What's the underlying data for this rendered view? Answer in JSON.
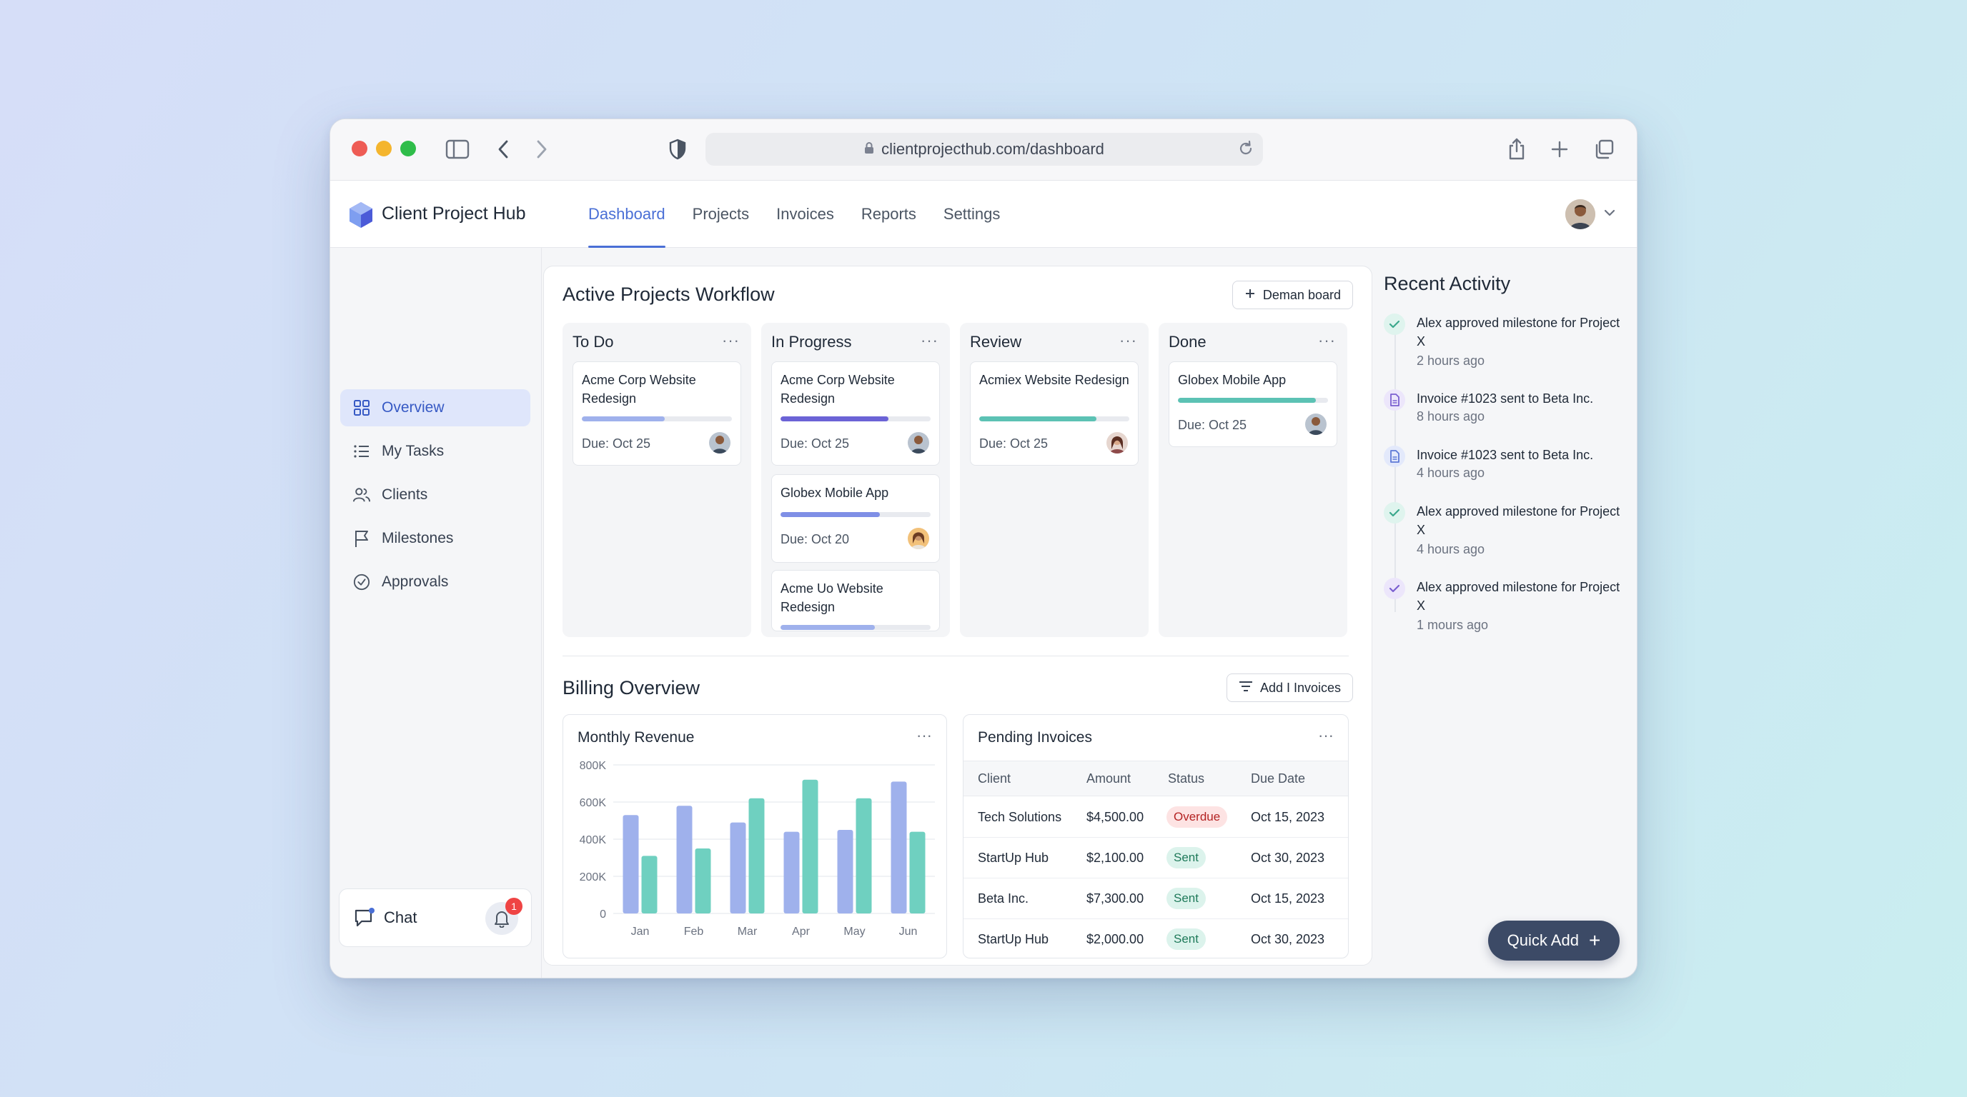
{
  "browser": {
    "url": "clientprojecthub.com/dashboard"
  },
  "app": {
    "brand": "Client Project Hub",
    "nav": [
      {
        "label": "Dashboard",
        "active": true
      },
      {
        "label": "Projects"
      },
      {
        "label": "Invoices"
      },
      {
        "label": "Reports"
      },
      {
        "label": "Settings"
      }
    ]
  },
  "sidebar": {
    "items": [
      {
        "label": "Overview",
        "icon": "grid-icon",
        "active": true
      },
      {
        "label": "My Tasks",
        "icon": "list-icon"
      },
      {
        "label": "Clients",
        "icon": "users-icon"
      },
      {
        "label": "Milestones",
        "icon": "flag-icon"
      },
      {
        "label": "Approvals",
        "icon": "check-circle-icon"
      }
    ],
    "chat_label": "Chat",
    "notification_count": "1"
  },
  "workflow": {
    "title": "Active Projects Workflow",
    "board_button": "Deman board",
    "columns": [
      {
        "title": "To Do",
        "more": "···",
        "cards": [
          {
            "title": "Acme Corp Website Redesign",
            "progress": 0.55,
            "color": "#9fb1ec",
            "due": "Due: Oct 25"
          }
        ]
      },
      {
        "title": "In Progress",
        "more": "···",
        "cards": [
          {
            "title": "Acme Corp Website Redesign",
            "progress": 0.72,
            "color": "#6b63d6",
            "due": "Due: Oct 25"
          },
          {
            "title": "Globex Mobile App",
            "progress": 0.66,
            "color": "#7f8fe6",
            "due": "Due: Oct 20"
          },
          {
            "title": "Acme Uo Website Redesign",
            "progress": 0.63,
            "color": "#9fb1ec",
            "due": ""
          }
        ]
      },
      {
        "title": "Review",
        "more": "···",
        "cards": [
          {
            "title": "Acmiex Website Redesign",
            "progress": 0.78,
            "color": "#5cc2b4",
            "due": "Due: Oct 25"
          }
        ]
      },
      {
        "title": "Done",
        "more": "···",
        "cards": [
          {
            "title": "Globex Mobile App",
            "progress": 0.92,
            "color": "#5cc2b4",
            "due": "Due: Oct 25"
          }
        ]
      }
    ]
  },
  "billing": {
    "title": "Billing Overview",
    "add_button": "Add I Invoices",
    "revenue_title": "Monthly Revenue",
    "invoices_title": "Pending Invoices",
    "more": "···",
    "invoice_headers": [
      "Client",
      "Amount",
      "Status",
      "Due Date"
    ],
    "invoices": [
      {
        "client": "Tech Solutions",
        "amount": "$4,500.00",
        "status": "Overdue",
        "due": "Oct 15, 2023"
      },
      {
        "client": "StartUp Hub",
        "amount": "$2,100.00",
        "status": "Sent",
        "due": "Oct 30, 2023"
      },
      {
        "client": "Beta Inc.",
        "amount": "$7,300.00",
        "status": "Sent",
        "due": "Oct 15, 2023"
      },
      {
        "client": "StartUp Hub",
        "amount": "$2,000.00",
        "status": "Sent",
        "due": "Oct 30, 2023"
      }
    ]
  },
  "chart_data": {
    "type": "bar",
    "title": "Monthly Revenue",
    "categories": [
      "Jan",
      "Feb",
      "Mar",
      "Apr",
      "May",
      "Jun"
    ],
    "y_tick_labels": [
      "0",
      "200K",
      "400K",
      "600K",
      "800K"
    ],
    "y_ticks": [
      0,
      200,
      400,
      600,
      800
    ],
    "ylim": [
      0,
      800
    ],
    "grid": true,
    "series": [
      {
        "values": [
          530,
          580,
          490,
          440,
          450,
          710
        ],
        "color": "#9fb1ec"
      },
      {
        "values": [
          310,
          350,
          620,
          720,
          620,
          440
        ],
        "color": "#6fd0c0"
      }
    ]
  },
  "activity": {
    "title": "Recent Activity",
    "items": [
      {
        "text": "Alex approved milestone for Project X",
        "time": "2 hours ago",
        "icon": "check-icon",
        "tint": "#dff4ee",
        "color": "#3aa88c"
      },
      {
        "text": "Invoice #1023 sent to Beta Inc.",
        "time": "8 hours ago",
        "icon": "document-icon",
        "tint": "#ece6fb",
        "color": "#7a5fd0"
      },
      {
        "text": "Invoice #1023 sent to Beta Inc.",
        "time": "4 hours ago",
        "icon": "document-icon",
        "tint": "#e3e9fb",
        "color": "#5d79d6"
      },
      {
        "text": "Alex approved milestone for Project X",
        "time": "4 hours ago",
        "icon": "check-icon",
        "tint": "#dff4ee",
        "color": "#3aa88c"
      },
      {
        "text": "Alex approved milestone for Project X",
        "time": "1 mours ago",
        "icon": "check-icon",
        "tint": "#ece6fb",
        "color": "#7a5fd0"
      }
    ]
  },
  "quick_add": "Quick Add"
}
